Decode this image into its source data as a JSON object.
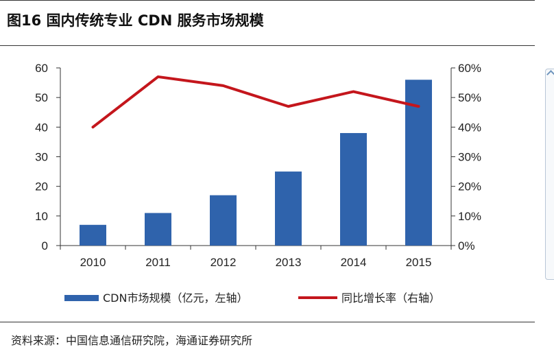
{
  "header": {
    "title": "图16   国内传统专业 CDN 服务市场规模"
  },
  "footer": {
    "source": "资料来源：中国信息通信研究院，海通证券研究所"
  },
  "colors": {
    "bar": "#2f63ac",
    "line": "#c4161c",
    "axis": "#333333"
  },
  "chart_data": {
    "type": "bar",
    "categories": [
      "2010",
      "2011",
      "2012",
      "2013",
      "2014",
      "2015"
    ],
    "series": [
      {
        "name": "CDN市场规模（亿元，左轴）",
        "type": "bar",
        "axis": "left",
        "values": [
          7,
          11,
          17,
          25,
          38,
          56
        ]
      },
      {
        "name": "同比增长率（右轴）",
        "type": "line",
        "axis": "right",
        "values": [
          40,
          57,
          54,
          47,
          52,
          47
        ]
      }
    ],
    "y_left": {
      "ylim": [
        0,
        60
      ],
      "ticks": [
        "0",
        "10",
        "20",
        "30",
        "40",
        "50",
        "60"
      ]
    },
    "y_right": {
      "ylim": [
        0,
        60
      ],
      "ticks": [
        "0%",
        "10%",
        "20%",
        "30%",
        "40%",
        "50%",
        "60%"
      ]
    },
    "grid": false,
    "legend_position": "bottom"
  }
}
